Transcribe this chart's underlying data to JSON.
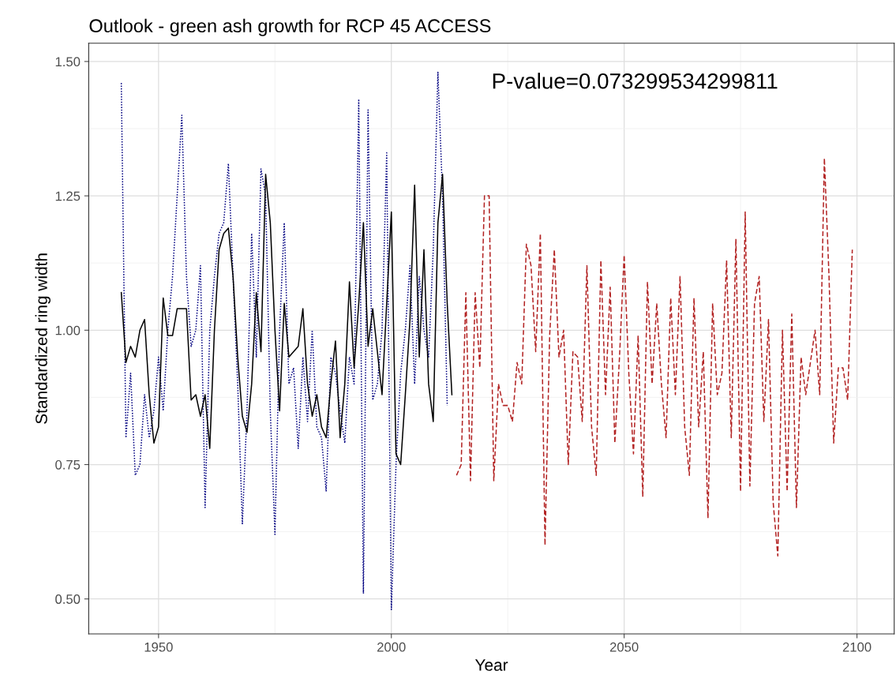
{
  "chart_data": {
    "type": "line",
    "title": "Outlook - green ash growth for RCP 45 ACCESS",
    "xlabel": "Year",
    "ylabel": "Standardized ring width",
    "annotations": [
      "P-value=0.073299534299811"
    ],
    "xlim": [
      1935,
      2108
    ],
    "xticks": [
      1950,
      2000,
      2050,
      2100
    ],
    "ylim": [
      0.435,
      1.534
    ],
    "yticks": [
      {
        "value": 0.5,
        "label": "0.50"
      },
      {
        "value": 0.75,
        "label": "0.75"
      },
      {
        "value": 1.0,
        "label": "1.00"
      },
      {
        "value": 1.25,
        "label": "1.25"
      },
      {
        "value": 1.5,
        "label": "1.50"
      }
    ],
    "grid": true,
    "series": [
      {
        "color": "#000080",
        "line_style": "dotted",
        "x": [
          1942,
          1943,
          1944,
          1945,
          1946,
          1947,
          1948,
          1949,
          1950,
          1951,
          1952,
          1953,
          1954,
          1955,
          1956,
          1957,
          1958,
          1959,
          1960,
          1961,
          1962,
          1963,
          1964,
          1965,
          1966,
          1967,
          1968,
          1969,
          1970,
          1971,
          1972,
          1973,
          1974,
          1975,
          1976,
          1977,
          1978,
          1979,
          1980,
          1981,
          1982,
          1983,
          1984,
          1985,
          1986,
          1987,
          1988,
          1989,
          1990,
          1991,
          1992,
          1993,
          1994,
          1995,
          1996,
          1997,
          1998,
          1999,
          2000,
          2001,
          2002,
          2003,
          2004,
          2005,
          2006,
          2007,
          2008,
          2009,
          2010,
          2011,
          2012
        ],
        "values": [
          1.46,
          0.8,
          0.92,
          0.73,
          0.75,
          0.88,
          0.8,
          0.85,
          0.95,
          0.85,
          1.0,
          1.1,
          1.25,
          1.4,
          1.1,
          0.97,
          1.0,
          1.12,
          0.67,
          1.0,
          1.1,
          1.18,
          1.2,
          1.31,
          1.1,
          0.9,
          0.64,
          0.85,
          1.18,
          0.95,
          1.3,
          1.25,
          0.85,
          0.62,
          1.0,
          1.2,
          0.9,
          0.93,
          0.78,
          0.95,
          0.83,
          1.0,
          0.82,
          0.8,
          0.7,
          0.95,
          0.92,
          0.85,
          0.79,
          0.95,
          0.9,
          1.43,
          0.51,
          1.41,
          0.87,
          0.9,
          1.0,
          1.33,
          0.48,
          0.75,
          0.92,
          1.0,
          1.12,
          0.9,
          1.1,
          1.0,
          0.95,
          1.15,
          1.48,
          1.25,
          0.86
        ]
      },
      {
        "color": "#000000",
        "line_style": "solid",
        "x": [
          1942,
          1943,
          1944,
          1945,
          1946,
          1947,
          1948,
          1949,
          1950,
          1951,
          1952,
          1953,
          1954,
          1955,
          1956,
          1957,
          1958,
          1959,
          1960,
          1961,
          1962,
          1963,
          1964,
          1965,
          1966,
          1967,
          1968,
          1969,
          1970,
          1971,
          1972,
          1973,
          1974,
          1975,
          1976,
          1977,
          1978,
          1979,
          1980,
          1981,
          1982,
          1983,
          1984,
          1985,
          1986,
          1987,
          1988,
          1989,
          1990,
          1991,
          1992,
          1993,
          1994,
          1995,
          1996,
          1997,
          1998,
          1999,
          2000,
          2001,
          2002,
          2003,
          2004,
          2005,
          2006,
          2007,
          2008,
          2009,
          2010,
          2011,
          2012,
          2013
        ],
        "values": [
          1.07,
          0.94,
          0.97,
          0.95,
          1.0,
          1.02,
          0.88,
          0.79,
          0.82,
          1.06,
          0.99,
          0.99,
          1.04,
          1.04,
          1.04,
          0.87,
          0.88,
          0.84,
          0.88,
          0.78,
          1.0,
          1.15,
          1.18,
          1.19,
          1.1,
          0.95,
          0.84,
          0.81,
          0.9,
          1.07,
          0.96,
          1.29,
          1.2,
          1.0,
          0.85,
          1.05,
          0.95,
          0.96,
          0.97,
          1.04,
          0.9,
          0.84,
          0.88,
          0.82,
          0.8,
          0.9,
          0.98,
          0.8,
          0.9,
          1.09,
          0.93,
          1.05,
          1.2,
          0.97,
          1.04,
          0.96,
          0.88,
          1.05,
          1.22,
          0.77,
          0.75,
          0.88,
          1.02,
          1.27,
          0.95,
          1.15,
          0.9,
          0.83,
          1.2,
          1.29,
          1.05,
          0.88
        ]
      },
      {
        "color": "#b22222",
        "line_style": "dashed",
        "x": [
          2014,
          2015,
          2016,
          2017,
          2018,
          2019,
          2020,
          2021,
          2022,
          2023,
          2024,
          2025,
          2026,
          2027,
          2028,
          2029,
          2030,
          2031,
          2032,
          2033,
          2034,
          2035,
          2036,
          2037,
          2038,
          2039,
          2040,
          2041,
          2042,
          2043,
          2044,
          2045,
          2046,
          2047,
          2048,
          2049,
          2050,
          2051,
          2052,
          2053,
          2054,
          2055,
          2056,
          2057,
          2058,
          2059,
          2060,
          2061,
          2062,
          2063,
          2064,
          2065,
          2066,
          2067,
          2068,
          2069,
          2070,
          2071,
          2072,
          2073,
          2074,
          2075,
          2076,
          2077,
          2078,
          2079,
          2080,
          2081,
          2082,
          2083,
          2084,
          2085,
          2086,
          2087,
          2088,
          2089,
          2090,
          2091,
          2092,
          2093,
          2094,
          2095,
          2096,
          2097,
          2098,
          2099
        ],
        "values": [
          0.73,
          0.75,
          1.07,
          0.72,
          1.07,
          0.93,
          1.25,
          1.25,
          0.72,
          0.9,
          0.86,
          0.86,
          0.83,
          0.94,
          0.9,
          1.16,
          1.12,
          0.96,
          1.18,
          0.6,
          0.99,
          1.15,
          0.95,
          1.0,
          0.75,
          0.96,
          0.95,
          0.83,
          1.12,
          0.82,
          0.73,
          1.13,
          0.88,
          1.08,
          0.79,
          0.95,
          1.14,
          0.92,
          0.77,
          0.99,
          0.69,
          1.09,
          0.9,
          1.05,
          0.9,
          0.8,
          1.06,
          0.88,
          1.1,
          0.82,
          0.73,
          1.06,
          0.82,
          0.96,
          0.65,
          1.05,
          0.88,
          0.92,
          1.13,
          0.8,
          1.17,
          0.7,
          1.22,
          0.71,
          1.05,
          1.1,
          0.83,
          1.02,
          0.68,
          0.58,
          1.0,
          0.7,
          1.03,
          0.67,
          0.95,
          0.88,
          0.94,
          1.0,
          0.88,
          1.32,
          1.1,
          0.79,
          0.93,
          0.93,
          0.87,
          1.15
        ]
      }
    ]
  }
}
